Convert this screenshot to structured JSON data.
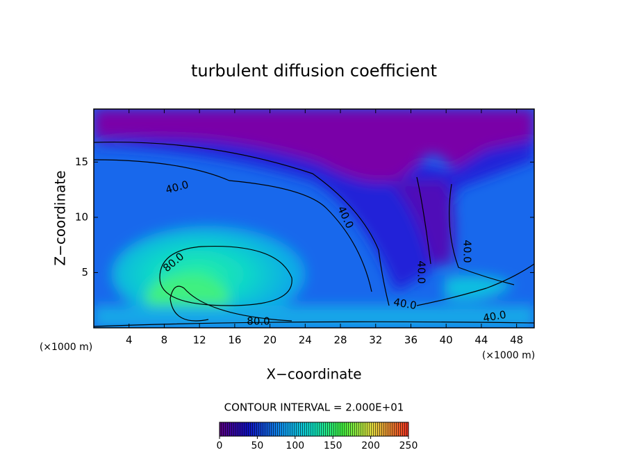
{
  "chart_data": {
    "type": "contour",
    "title": "turbulent diffusion coefficient",
    "xlabel": "X−coordinate",
    "ylabel": "Z−coordinate",
    "x_unit": "(×1000 m)",
    "xlim": [
      0,
      50
    ],
    "xticks": [
      4,
      8,
      12,
      16,
      20,
      24,
      28,
      32,
      36,
      40,
      44,
      48
    ],
    "ylim": [
      0,
      19.8
    ],
    "yticks": [
      5,
      10,
      15
    ],
    "contour_labels": [
      {
        "value": 40,
        "label": "40.0"
      },
      {
        "value": 40,
        "label": "40.0"
      },
      {
        "value": 40,
        "label": "40.0"
      },
      {
        "value": 40,
        "label": "40.0"
      },
      {
        "value": 40,
        "label": "40.0"
      },
      {
        "value": 40,
        "label": "40.0"
      },
      {
        "value": 80,
        "label": "80.0"
      },
      {
        "value": 80,
        "label": "80.0"
      }
    ],
    "colorbar": {
      "title": "CONTOUR INTERVAL = 2.000E+01",
      "range": [
        0,
        250
      ],
      "ticks": [
        0,
        50,
        100,
        150,
        200,
        250
      ]
    }
  }
}
